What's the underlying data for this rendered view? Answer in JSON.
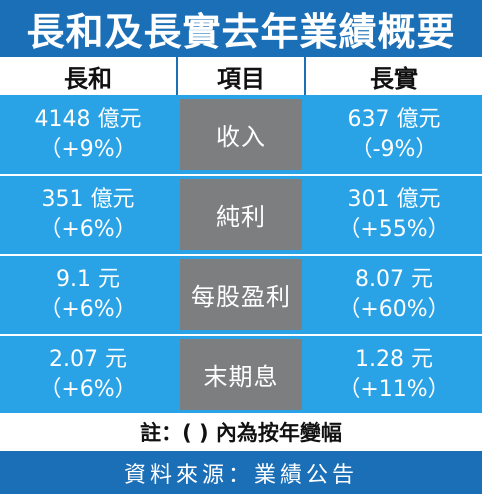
{
  "title": "長和及長實去年業績概要",
  "headers": {
    "left": "長和",
    "mid": "項目",
    "right": "長實"
  },
  "rows": [
    {
      "item": "收入",
      "left_value": "4148 億元",
      "left_change": "（+9%）",
      "right_value": "637 億元",
      "right_change": "（-9%）"
    },
    {
      "item": "純利",
      "left_value": "351 億元",
      "left_change": "（+6%）",
      "right_value": "301 億元",
      "right_change": "（+55%）"
    },
    {
      "item": "每股盈利",
      "left_value": "9.1 元",
      "left_change": "（+6%）",
      "right_value": "8.07 元",
      "right_change": "（+60%）"
    },
    {
      "item": "末期息",
      "left_value": "2.07 元",
      "left_change": "（+6%）",
      "right_value": "1.28 元",
      "right_change": "（+11%）"
    }
  ],
  "note": "註：( ) 內為按年變幅",
  "source": "資料來源：業績公告",
  "colors": {
    "title_bg": "#1a6fb7",
    "table_bg": "#2aa3e6",
    "item_bg": "#7d7e80"
  }
}
